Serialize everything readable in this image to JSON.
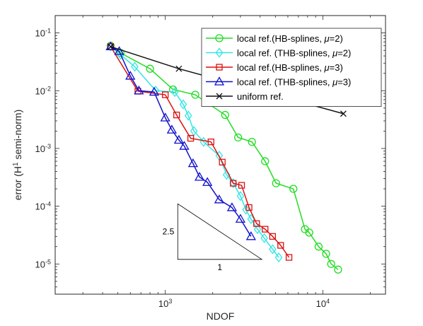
{
  "chart_data": {
    "type": "line",
    "x_scale": "log",
    "y_scale": "log",
    "xlabel": "NDOF",
    "ylabel_prefix": "error (H",
    "ylabel_sup": "1",
    "ylabel_suffix": " semi-norm)",
    "xlim": [
      200,
      25000
    ],
    "ylim": [
      3e-06,
      0.2
    ],
    "x_ticks": [
      {
        "value": 1000,
        "base": "10",
        "exp": "3"
      },
      {
        "value": 10000,
        "base": "10",
        "exp": "4"
      }
    ],
    "y_ticks": [
      {
        "value": 0.1,
        "base": "10",
        "exp": "-1"
      },
      {
        "value": 0.01,
        "base": "10",
        "exp": "-2"
      },
      {
        "value": 0.001,
        "base": "10",
        "exp": "-3"
      },
      {
        "value": 0.0001,
        "base": "10",
        "exp": "-4"
      },
      {
        "value": 1e-05,
        "base": "10",
        "exp": "-5"
      }
    ],
    "legend_position": "top-right",
    "series": [
      {
        "name_prefix": "local ref.(HB-splines, ",
        "name_mu": "μ",
        "name_suffix": "=2)",
        "color": "#22dd22",
        "marker": "circle",
        "x": [
          450,
          520,
          800,
          1120,
          1550,
          2400,
          2900,
          3550,
          4300,
          5050,
          6500,
          7700,
          8200,
          9400,
          10500,
          11300,
          12500
        ],
        "y": [
          0.06,
          0.045,
          0.024,
          0.0105,
          0.0085,
          0.0038,
          0.00155,
          0.0013,
          0.0006,
          0.00025,
          0.0002,
          4e-05,
          3.5e-05,
          2e-05,
          1.5e-05,
          1e-05,
          8e-06
        ]
      },
      {
        "name_prefix": "local ref. (THB-splines, ",
        "name_mu": "μ",
        "name_suffix": "=2)",
        "color": "#33e5e5",
        "marker": "diamond",
        "x": [
          450,
          520,
          640,
          870,
          1150,
          1300,
          1400,
          1520,
          1750,
          2200,
          2450,
          2700,
          3000,
          3250,
          3500,
          3850,
          4250,
          4800,
          5250
        ],
        "y": [
          0.058,
          0.042,
          0.026,
          0.01,
          0.0095,
          0.0058,
          0.0037,
          0.002,
          0.0013,
          0.00075,
          0.00035,
          0.00025,
          0.00015,
          8.7e-05,
          6e-05,
          4e-05,
          2.8e-05,
          1.8e-05,
          1.3e-05
        ]
      },
      {
        "name_prefix": "local ref.(HB-splines, ",
        "name_mu": "μ",
        "name_suffix": "=3)",
        "color": "#dd1111",
        "marker": "square",
        "x": [
          450,
          670,
          1000,
          1180,
          1450,
          1950,
          2300,
          2700,
          3050,
          3400,
          3800,
          4300,
          4800,
          5400,
          6100
        ],
        "y": [
          0.058,
          0.0098,
          0.0085,
          0.0038,
          0.0015,
          0.0013,
          0.00058,
          0.00025,
          0.00023,
          9.5e-05,
          5e-05,
          4e-05,
          3e-05,
          2.1e-05,
          1.3e-05
        ]
      },
      {
        "name_prefix": "local ref. (THB-splines, ",
        "name_mu": "μ",
        "name_suffix": "=3)",
        "color": "#1111cc",
        "marker": "triangle",
        "x": [
          450,
          510,
          600,
          680,
          850,
          1000,
          1100,
          1220,
          1320,
          1500,
          1650,
          1850,
          2200,
          2650,
          3000,
          3500
        ],
        "y": [
          0.058,
          0.048,
          0.018,
          0.01,
          0.0095,
          0.0034,
          0.0021,
          0.0014,
          0.0011,
          0.00055,
          0.00032,
          0.00026,
          0.00013,
          9.5e-05,
          6e-05,
          3e-05
        ]
      },
      {
        "name_prefix": "uniform ref.",
        "name_mu": "",
        "name_suffix": "",
        "color": "#111111",
        "marker": "x",
        "x": [
          450,
          1220,
          13500
        ],
        "y": [
          0.058,
          0.024,
          0.004
        ]
      }
    ],
    "slope_triangle": {
      "vertices": [
        [
          1200,
          0.00011
        ],
        [
          1200,
          1.2e-05
        ],
        [
          4100,
          1.2e-05
        ]
      ],
      "label_slope": "2.5",
      "label_base": "1",
      "color": "#000000"
    }
  }
}
